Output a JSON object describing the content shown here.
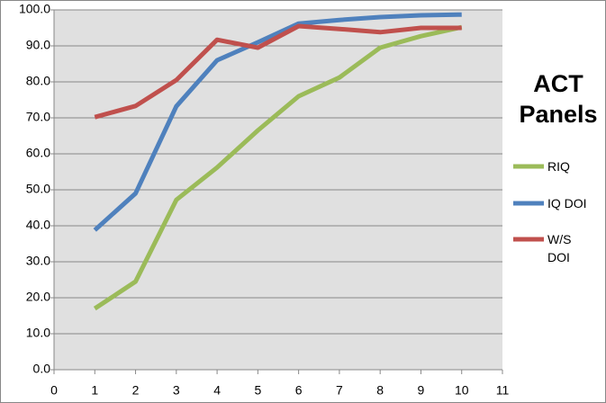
{
  "chart_data": {
    "type": "line",
    "title": "ACT Panels",
    "x": [
      1,
      2,
      3,
      4,
      5,
      6,
      7,
      8,
      9,
      10
    ],
    "series": [
      {
        "name": "RIQ",
        "color": "#9bbb59",
        "values": [
          17,
          24.5,
          47.2,
          56.2,
          66.5,
          76,
          81.2,
          89.5,
          92.7,
          95.2
        ]
      },
      {
        "name": "IQ DOI",
        "color": "#4f81bd",
        "values": [
          38.8,
          49,
          73.2,
          86,
          91,
          96.2,
          97.2,
          98,
          98.5,
          98.7
        ]
      },
      {
        "name": "W/S DOI",
        "color": "#c0504d",
        "values": [
          70.2,
          73.3,
          80.5,
          91.7,
          89.5,
          95.5,
          94.7,
          93.8,
          95,
          95
        ]
      }
    ],
    "xlim": [
      0,
      11
    ],
    "xticks": [
      0,
      1,
      2,
      3,
      4,
      5,
      6,
      7,
      8,
      9,
      10,
      11
    ],
    "ylim": [
      0,
      100
    ],
    "yticks": [
      {
        "value": 0,
        "label": "0.0"
      },
      {
        "value": 10,
        "label": "10.0"
      },
      {
        "value": 20,
        "label": "20.0"
      },
      {
        "value": 30,
        "label": "30.0"
      },
      {
        "value": 40,
        "label": "40.0"
      },
      {
        "value": 50,
        "label": "50.0"
      },
      {
        "value": 60,
        "label": "60.0"
      },
      {
        "value": 70,
        "label": "70.0"
      },
      {
        "value": 80,
        "label": "80.0"
      },
      {
        "value": 90,
        "label": "90.0"
      },
      {
        "value": 100,
        "label": "100.0"
      }
    ],
    "grid": true,
    "legend": "right"
  }
}
